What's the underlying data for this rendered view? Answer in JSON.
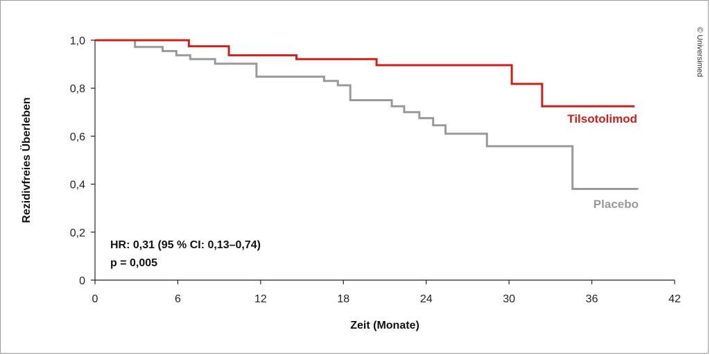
{
  "copyright": "© Universimed",
  "chart_data": {
    "type": "line",
    "title": "",
    "xlabel": "Zeit (Monate)",
    "ylabel": "Rezidivfreies Überleben",
    "xlim": [
      0,
      42
    ],
    "ylim": [
      0,
      1
    ],
    "x_ticks": [
      0,
      6,
      12,
      18,
      24,
      30,
      36,
      42
    ],
    "x_tick_labels": [
      "0",
      "6",
      "12",
      "18",
      "24",
      "30",
      "36",
      "42"
    ],
    "y_ticks": [
      0,
      0.2,
      0.4,
      0.6,
      0.8,
      1.0
    ],
    "y_tick_labels": [
      "0",
      "0,2",
      "0,4",
      "0,6",
      "0,8",
      "1,0"
    ],
    "grid": false,
    "step": true,
    "series": [
      {
        "name": "Tilsotolimod",
        "color": "#cc1f1a",
        "points": [
          [
            0,
            1.0
          ],
          [
            6.8,
            0.975
          ],
          [
            9.7,
            0.937
          ],
          [
            14.6,
            0.921
          ],
          [
            20.4,
            0.896
          ],
          [
            30.2,
            0.818
          ],
          [
            32.4,
            0.725
          ],
          [
            39.1,
            0.725
          ]
        ]
      },
      {
        "name": "Placebo",
        "color": "#999999",
        "points": [
          [
            0,
            1.0
          ],
          [
            2.9,
            0.972
          ],
          [
            4.9,
            0.955
          ],
          [
            5.9,
            0.937
          ],
          [
            6.9,
            0.921
          ],
          [
            8.7,
            0.902
          ],
          [
            11.7,
            0.848
          ],
          [
            16.6,
            0.83
          ],
          [
            17.6,
            0.812
          ],
          [
            18.5,
            0.75
          ],
          [
            21.5,
            0.725
          ],
          [
            22.4,
            0.7
          ],
          [
            23.5,
            0.675
          ],
          [
            24.5,
            0.645
          ],
          [
            25.4,
            0.61
          ],
          [
            28.4,
            0.558
          ],
          [
            34.6,
            0.38
          ],
          [
            39.3,
            0.378
          ]
        ]
      }
    ],
    "annotations": {
      "hr": "HR: 0,31 (95 % CI: 0,13–0,74)",
      "p": "p = 0,005"
    }
  }
}
